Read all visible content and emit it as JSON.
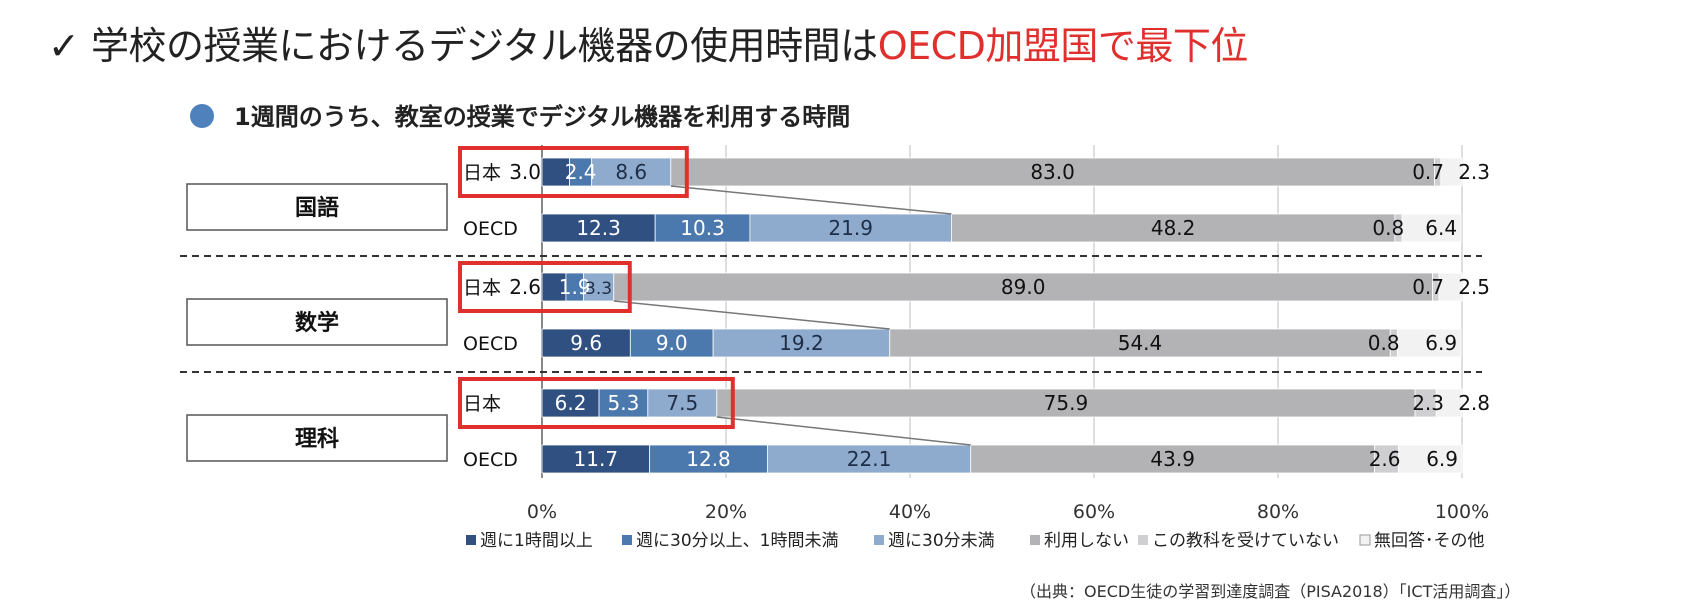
{
  "headline": {
    "check": "✓",
    "main": "学校の授業におけるデジタル機器の使用時間は",
    "accent": "OECD加盟国で最下位"
  },
  "subtitle": "1週間のうち、教室の授業でデジタル機器を利用する時間",
  "source": "（出典：OECD生徒の学習到達度調査（PISA2018）「ICT活用調査」）",
  "colors": {
    "s1": "#2f5080",
    "s2": "#4c79ad",
    "s3": "#8eabcd",
    "s4": "#b3b3b5",
    "s5": "#cfcfd1",
    "s6": "#f2f2f2",
    "highlight": "#e0302e"
  },
  "chart_data": {
    "type": "bar",
    "orientation": "horizontal",
    "stacked": true,
    "percent": true,
    "xlim": [
      0,
      100
    ],
    "ticks": [
      "0%",
      "20%",
      "40%",
      "60%",
      "80%",
      "100%"
    ],
    "grid": true,
    "legend_position": "bottom",
    "series": [
      {
        "name": "週に1時間以上",
        "color_key": "s1"
      },
      {
        "name": "週に30分以上、1時間未満",
        "color_key": "s2"
      },
      {
        "name": "週に30分未満",
        "color_key": "s3"
      },
      {
        "name": "利用しない",
        "color_key": "s4"
      },
      {
        "name": "この教科を受けていない",
        "color_key": "s5"
      },
      {
        "name": "無回答･その他",
        "color_key": "s6"
      }
    ],
    "groups": [
      {
        "subject": "国語",
        "rows": [
          {
            "label": "日本",
            "values": [
              3.0,
              2.4,
              8.6,
              83.0,
              0.7,
              2.3
            ]
          },
          {
            "label": "OECD",
            "values": [
              12.3,
              10.3,
              21.9,
              48.2,
              0.8,
              6.4
            ]
          }
        ]
      },
      {
        "subject": "数学",
        "rows": [
          {
            "label": "日本",
            "values": [
              2.6,
              1.9,
              3.3,
              89.0,
              0.7,
              2.5
            ]
          },
          {
            "label": "OECD",
            "values": [
              9.6,
              9.0,
              19.2,
              54.4,
              0.8,
              6.9
            ]
          }
        ]
      },
      {
        "subject": "理科",
        "rows": [
          {
            "label": "日本",
            "values": [
              6.2,
              5.3,
              7.5,
              75.9,
              2.3,
              2.8
            ]
          },
          {
            "label": "OECD",
            "values": [
              11.7,
              12.8,
              22.1,
              43.9,
              2.6,
              6.9
            ]
          }
        ]
      }
    ]
  }
}
